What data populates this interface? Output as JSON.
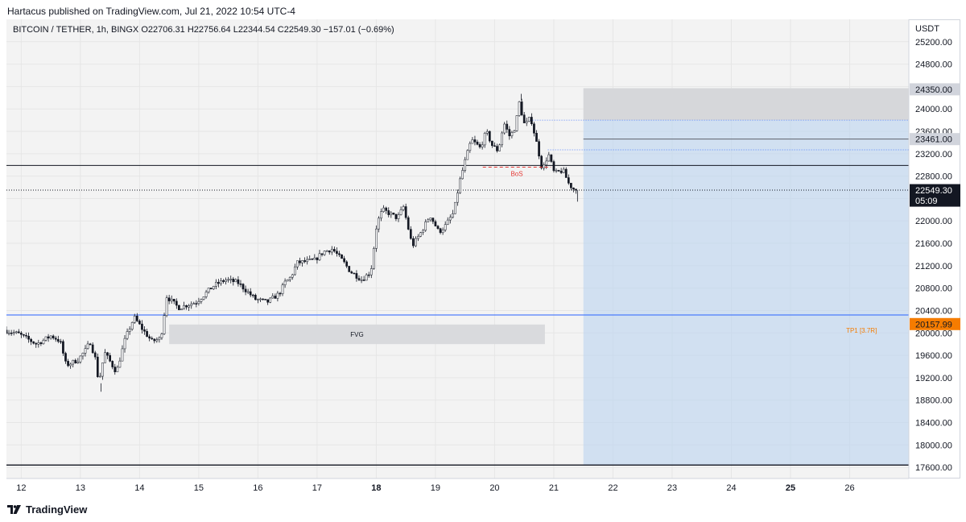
{
  "header": {
    "published": "Hartacus published on TradingView.com, Jul 21, 2022 10:54 UTC-4"
  },
  "legend": {
    "text": "BITCOIN / TETHER, 1h, BINGX  O22706.31  H22756.64  L22344.54  C22549.30  −157.01 (−0.69%)"
  },
  "brand": {
    "name": "TradingView",
    "logo_icon": "tradingview-logo-icon"
  },
  "colors": {
    "up": "#26a69a",
    "down": "#131722",
    "candle_body": "#ffffff",
    "blue_line": "#2962ff",
    "box_fill": "#bbd4f0",
    "stop_fill": "#d6d7da",
    "fvg_fill": "#d9dadd",
    "bos": "#e53935",
    "tp": "#f57c00",
    "last_price_bg": "#131722",
    "label_gray": "#787b86"
  },
  "chart_data": {
    "type": "candlestick",
    "title": "BITCOIN / TETHER, 1h, BINGX",
    "ylabel": "USDT",
    "ylim": [
      17400,
      25600
    ],
    "yticks": [
      17600,
      18000,
      18400,
      18800,
      19200,
      19600,
      20000,
      20400,
      20800,
      21200,
      21600,
      22000,
      22400,
      22800,
      23200,
      23600,
      24000,
      24400,
      24800,
      25200
    ],
    "ytick_labels": [
      "17600.00",
      "18000.00",
      "18400.00",
      "18800.00",
      "19200.00",
      "19600.00",
      "20000.00",
      "20400.00",
      "20800.00",
      "21200.00",
      "21600.00",
      "22000.00",
      "22400.00",
      "22800.00",
      "23200.00",
      "23600.00",
      "24000.00",
      "24400.00",
      "24800.00",
      "25200.00"
    ],
    "xlim": [
      11.75,
      27.0
    ],
    "xticks": [
      12,
      13,
      14,
      15,
      16,
      17,
      18,
      19,
      20,
      21,
      22,
      23,
      24,
      25,
      26
    ],
    "xtick_labels": [
      "12",
      "13",
      "14",
      "15",
      "16",
      "17",
      "18",
      "19",
      "20",
      "21",
      "22",
      "23",
      "24",
      "25",
      "26"
    ],
    "bold_xticks": [
      18,
      25
    ],
    "grid": true,
    "ohlc": {
      "open": 22706.31,
      "high": 22756.64,
      "low": 22344.54,
      "close": 22549.3,
      "change": -157.01,
      "change_pct": -0.69
    },
    "price_path": [
      [
        11.75,
        20050
      ],
      [
        12.0,
        19980
      ],
      [
        12.3,
        19800
      ],
      [
        12.55,
        19950
      ],
      [
        12.7,
        19850
      ],
      [
        12.8,
        19420
      ],
      [
        13.0,
        19520
      ],
      [
        13.15,
        19720
      ],
      [
        13.2,
        19860
      ],
      [
        13.3,
        19520
      ],
      [
        13.35,
        19100
      ],
      [
        13.45,
        19650
      ],
      [
        13.65,
        19300
      ],
      [
        13.8,
        19900
      ],
      [
        13.95,
        20280
      ],
      [
        14.1,
        20050
      ],
      [
        14.25,
        19850
      ],
      [
        14.4,
        19900
      ],
      [
        14.5,
        20650
      ],
      [
        14.7,
        20450
      ],
      [
        15.0,
        20550
      ],
      [
        15.3,
        20850
      ],
      [
        15.5,
        20950
      ],
      [
        15.7,
        20900
      ],
      [
        16.0,
        20600
      ],
      [
        16.2,
        20550
      ],
      [
        16.4,
        20700
      ],
      [
        16.5,
        20900
      ],
      [
        16.6,
        21000
      ],
      [
        16.7,
        21250
      ],
      [
        17.0,
        21300
      ],
      [
        17.15,
        21450
      ],
      [
        17.3,
        21500
      ],
      [
        17.5,
        21250
      ],
      [
        17.6,
        21100
      ],
      [
        17.8,
        20950
      ],
      [
        17.95,
        21100
      ],
      [
        18.05,
        21950
      ],
      [
        18.15,
        22200
      ],
      [
        18.4,
        22050
      ],
      [
        18.5,
        22250
      ],
      [
        18.65,
        21550
      ],
      [
        18.8,
        21800
      ],
      [
        18.95,
        22100
      ],
      [
        19.1,
        21800
      ],
      [
        19.2,
        21900
      ],
      [
        19.35,
        22150
      ],
      [
        19.45,
        22700
      ],
      [
        19.55,
        23100
      ],
      [
        19.65,
        23450
      ],
      [
        19.8,
        23300
      ],
      [
        19.9,
        23600
      ],
      [
        20.0,
        23350
      ],
      [
        20.1,
        23250
      ],
      [
        20.2,
        23750
      ],
      [
        20.3,
        23500
      ],
      [
        20.4,
        23700
      ],
      [
        20.45,
        24150
      ],
      [
        20.55,
        23700
      ],
      [
        20.65,
        23850
      ],
      [
        20.75,
        23400
      ],
      [
        20.85,
        22900
      ],
      [
        20.95,
        23200
      ],
      [
        21.05,
        22850
      ],
      [
        21.2,
        22900
      ],
      [
        21.3,
        22650
      ],
      [
        21.4,
        22549.3
      ]
    ],
    "markers": [
      [
        20.45,
        24270
      ],
      [
        13.35,
        18950
      ],
      [
        21.4,
        22344
      ]
    ],
    "levels": [
      {
        "name": "entry",
        "value": 22990
      },
      {
        "name": "current",
        "value": 22549.3
      },
      {
        "name": "tp1",
        "value": 20320
      },
      {
        "name": "bottom",
        "value": 17640
      },
      {
        "name": "dotted-upper",
        "value": 23800
      },
      {
        "name": "dotted-mid",
        "value": 23270
      }
    ],
    "price_labels": [
      {
        "value": 24350,
        "text": "24350.00",
        "style": "gray"
      },
      {
        "value": 23461,
        "text": "23461.00",
        "style": "gray"
      },
      {
        "value": 22549.3,
        "text": "22549.30",
        "sub": "05:09",
        "style": "dark"
      },
      {
        "value": 20157.99,
        "text": "20157.99",
        "style": "orange"
      }
    ],
    "position_box": {
      "x_start": 21.5,
      "x_end": 27.0,
      "stop_top": 24370,
      "stop_bottom": 23800,
      "entry": 22990,
      "target_bottom": 17640
    },
    "fvg": {
      "x_start": 14.5,
      "x_end": 20.85,
      "top": 20150,
      "bottom": 19800,
      "label": "FVG"
    },
    "bos": {
      "x_start": 19.8,
      "x_end": 20.95,
      "value": 22960,
      "label": "BoS"
    },
    "annotations": [
      {
        "label": "TP1 [3.7R]",
        "x": 26.2,
        "value": 20050
      }
    ]
  }
}
